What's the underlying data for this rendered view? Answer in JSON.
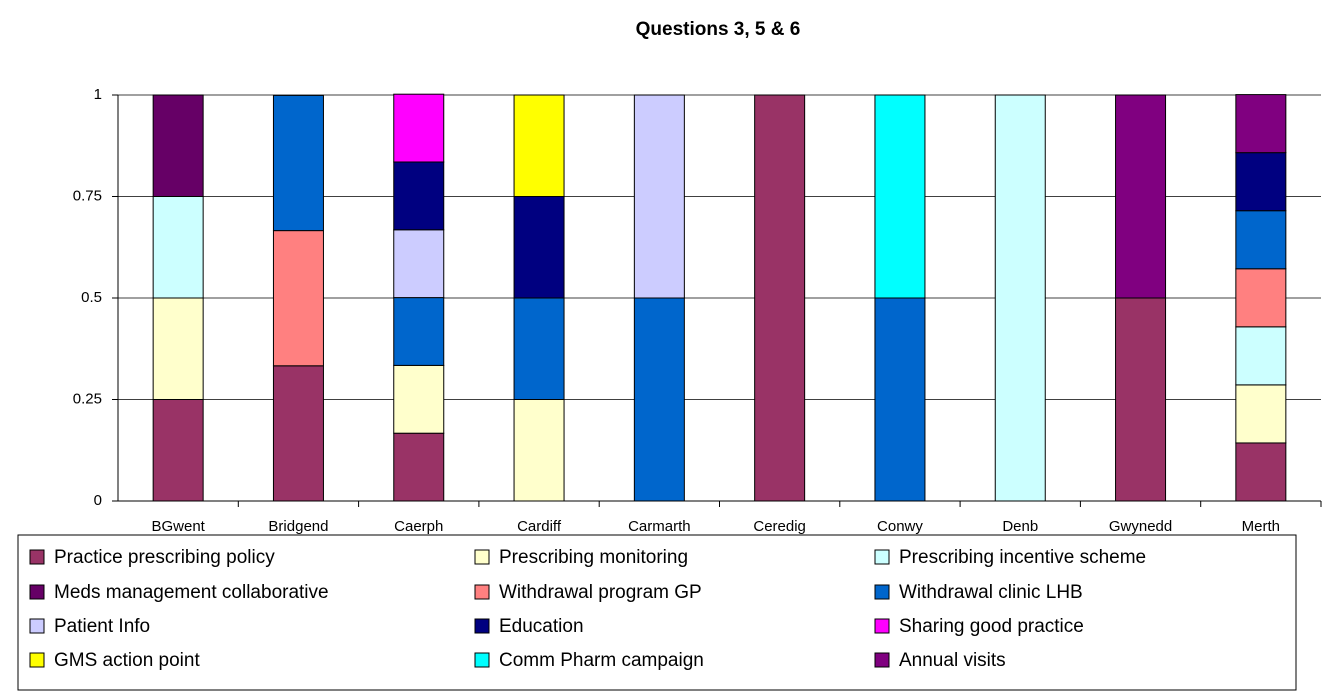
{
  "chart_data": {
    "type": "stacked_bar",
    "title": "Questions 3, 5 & 6",
    "categories": [
      "BGwent",
      "Bridgend",
      "Caerph",
      "Cardiff",
      "Carmarth",
      "Ceredig",
      "Conwy",
      "Denb",
      "Gwynedd",
      "Merth"
    ],
    "ylim": [
      0,
      1
    ],
    "yticks": [
      0,
      0.25,
      0.5,
      0.75,
      1
    ],
    "grid": true,
    "series": [
      {
        "name": "Practice prescribing policy",
        "color": "#993366",
        "values": [
          0.25,
          0.333,
          0.167,
          0,
          0,
          1,
          0,
          0,
          0.5,
          0.143
        ]
      },
      {
        "name": "Prescribing monitoring",
        "color": "#FFFFCC",
        "values": [
          0.25,
          0,
          0.167,
          0.25,
          0,
          0,
          0,
          0,
          0,
          0.143
        ]
      },
      {
        "name": "Prescribing incentive scheme",
        "color": "#CCFFFF",
        "values": [
          0.25,
          0,
          0,
          0,
          0,
          0,
          0,
          1,
          0,
          0.143
        ]
      },
      {
        "name": "Meds management collaborative",
        "color": "#660066",
        "values": [
          0.25,
          0,
          0,
          0,
          0,
          0,
          0,
          0,
          0,
          0
        ]
      },
      {
        "name": "Withdrawal program GP",
        "color": "#FF8080",
        "values": [
          0,
          0.333,
          0,
          0,
          0,
          0,
          0,
          0,
          0,
          0.143
        ]
      },
      {
        "name": "Withdrawal clinic LHB",
        "color": "#0066CC",
        "values": [
          0,
          0.333,
          0.167,
          0.25,
          0.5,
          0,
          0.5,
          0,
          0,
          0.143
        ]
      },
      {
        "name": "Patient Info",
        "color": "#CCCCFF",
        "values": [
          0,
          0,
          0.167,
          0,
          0.5,
          0,
          0,
          0,
          0,
          0
        ]
      },
      {
        "name": "Education",
        "color": "#000080",
        "values": [
          0,
          0,
          0.167,
          0.25,
          0,
          0,
          0,
          0,
          0,
          0.143
        ]
      },
      {
        "name": "Sharing good practice",
        "color": "#FF00FF",
        "values": [
          0,
          0,
          0.167,
          0,
          0,
          0,
          0,
          0,
          0,
          0
        ]
      },
      {
        "name": "GMS action point",
        "color": "#FFFF00",
        "values": [
          0,
          0,
          0,
          0.25,
          0,
          0,
          0,
          0,
          0,
          0
        ]
      },
      {
        "name": "Comm Pharm campaign",
        "color": "#00FFFF",
        "values": [
          0,
          0,
          0,
          0,
          0,
          0,
          0.5,
          0,
          0,
          0
        ]
      },
      {
        "name": "Annual visits",
        "color": "#800080",
        "values": [
          0,
          0,
          0,
          0,
          0,
          0,
          0,
          0,
          0.5,
          0.143
        ]
      }
    ]
  }
}
